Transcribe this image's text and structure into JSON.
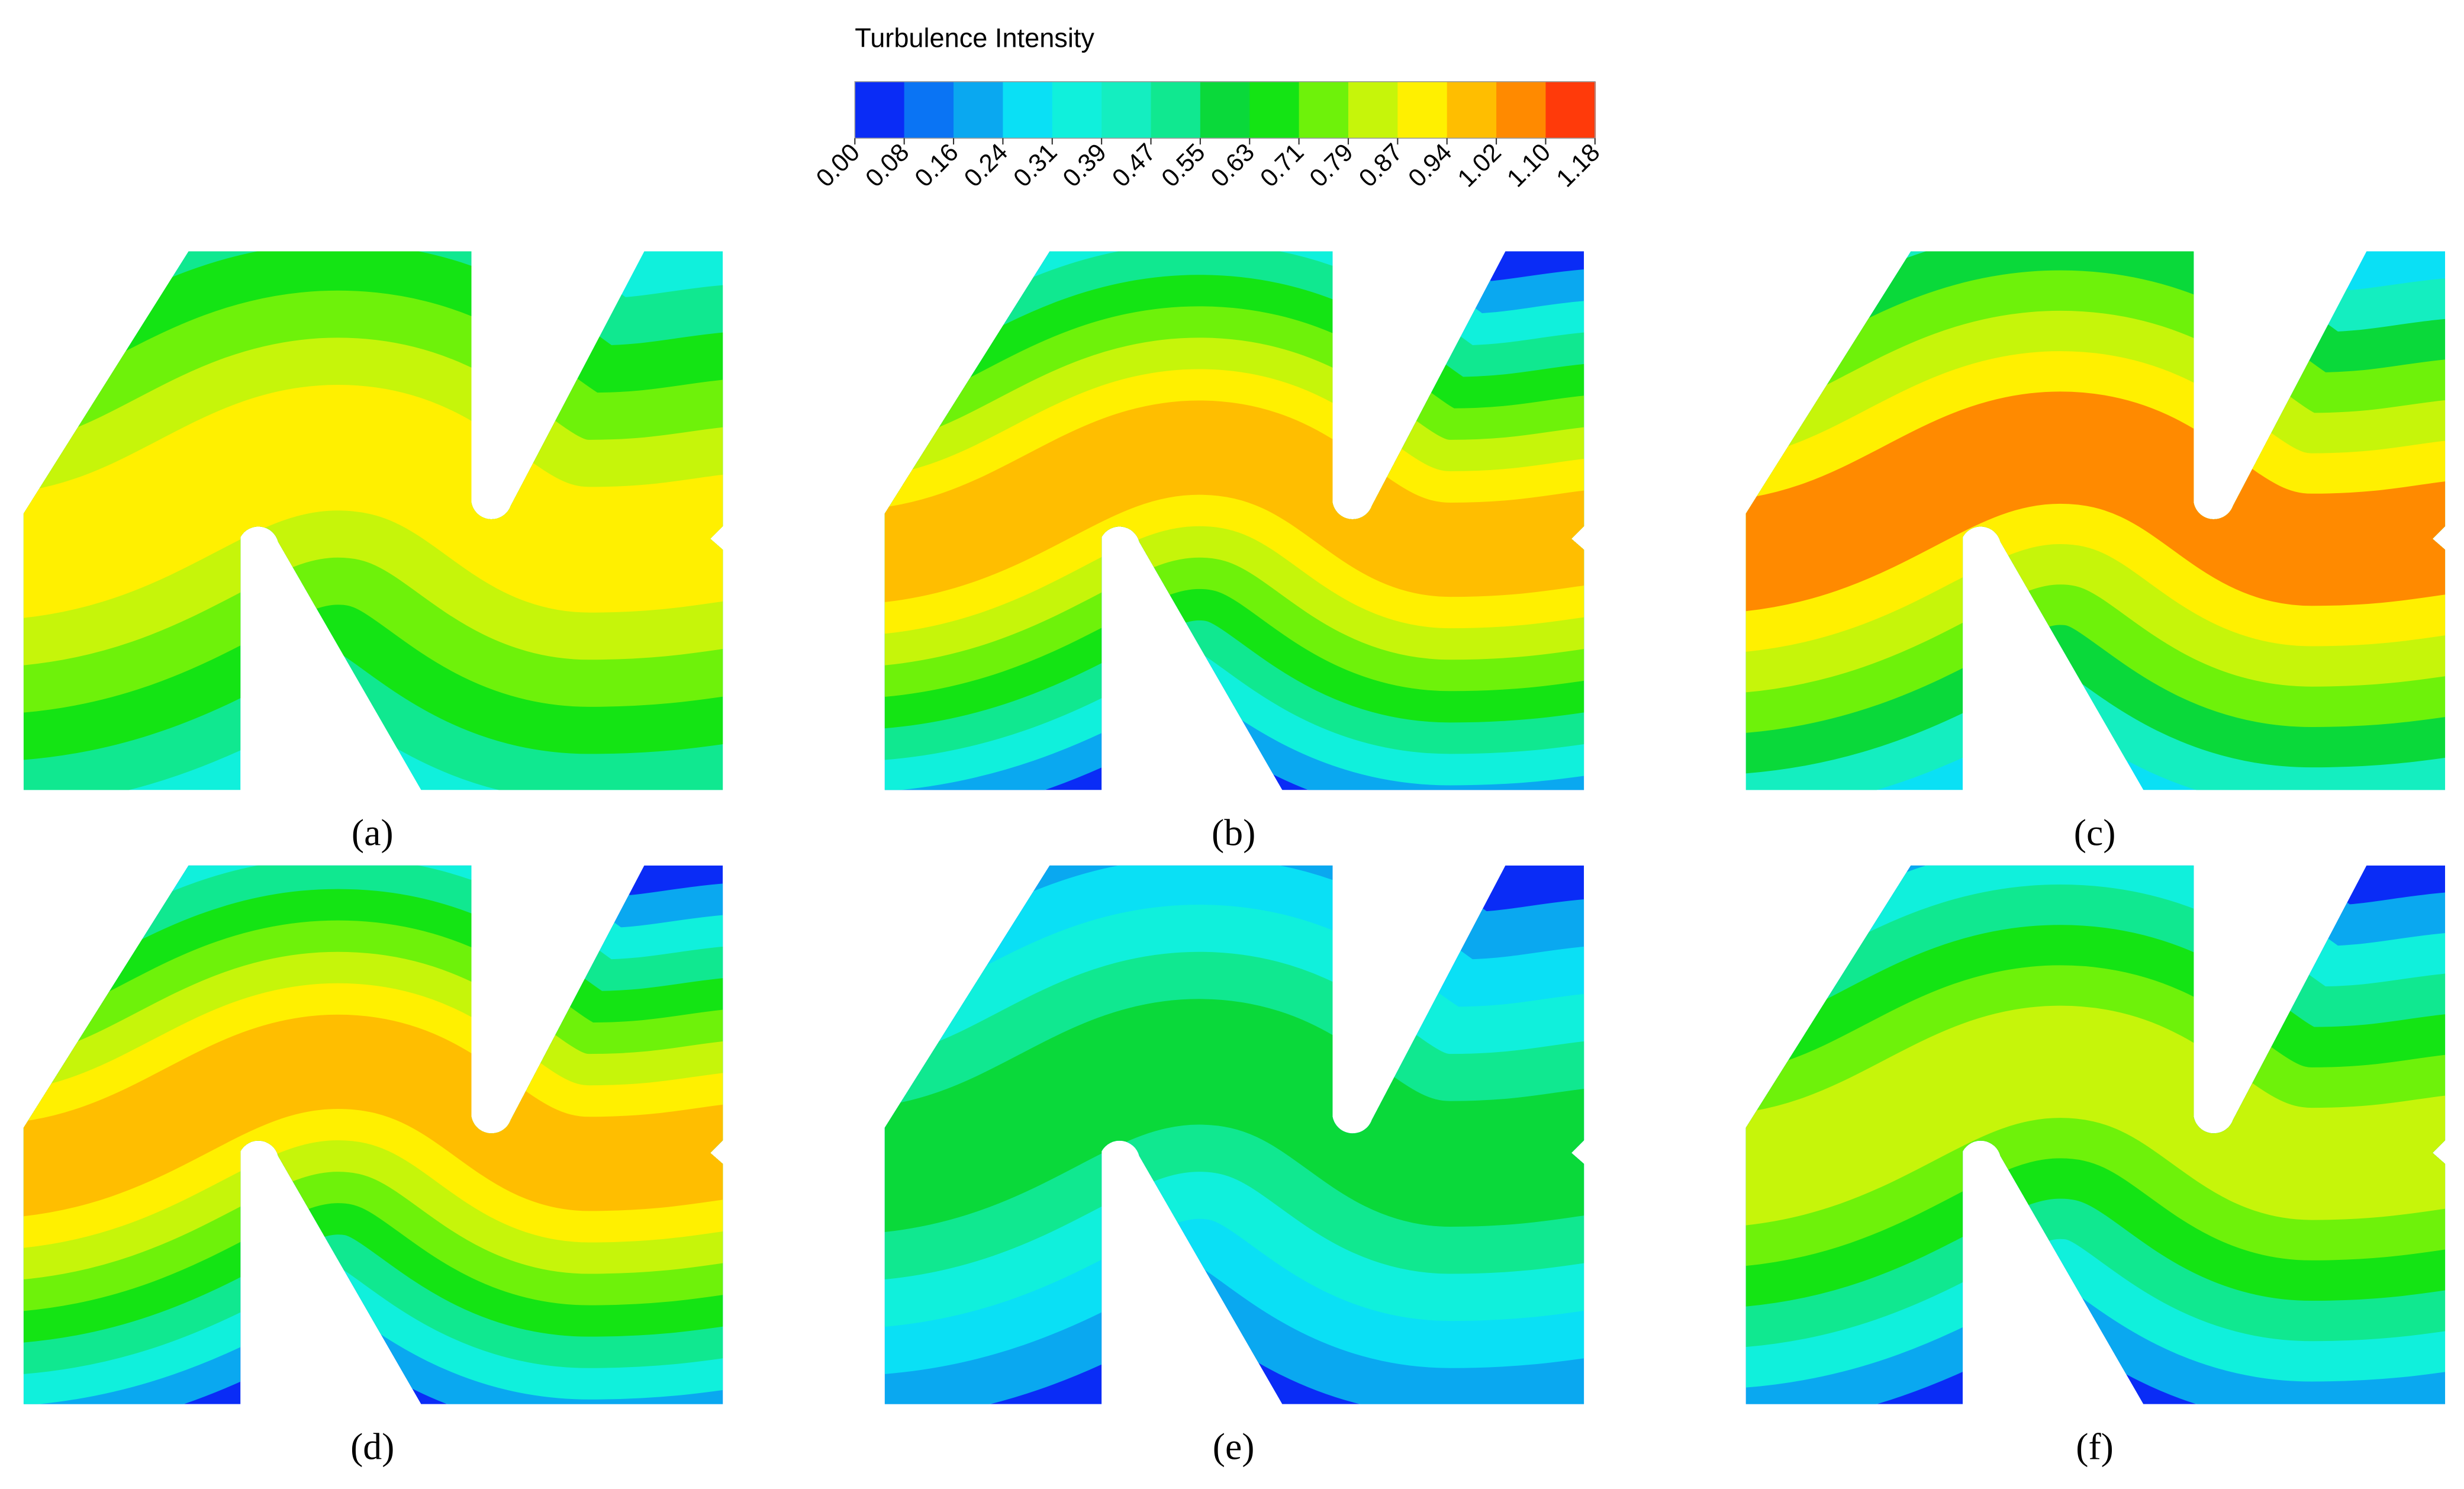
{
  "colorbar": {
    "title": "Turbulence Intensity",
    "ticks": [
      "0.00",
      "0.08",
      "0.16",
      "0.24",
      "0.31",
      "0.39",
      "0.47",
      "0.55",
      "0.63",
      "0.71",
      "0.79",
      "0.87",
      "0.94",
      "1.02",
      "1.10",
      "1.18"
    ],
    "colors": [
      "#0a2cf6",
      "#0a74f4",
      "#0aa8f0",
      "#0ae0f5",
      "#10f0dc",
      "#14eec0",
      "#10e890",
      "#0ad93a",
      "#14e414",
      "#6ef20a",
      "#c6f50a",
      "#fff000",
      "#ffbe00",
      "#ff8a00",
      "#ff3a0a"
    ]
  },
  "panels": [
    {
      "label": "(a)"
    },
    {
      "label": "(b)"
    },
    {
      "label": "(c)"
    },
    {
      "label": "(d)"
    },
    {
      "label": "(e)"
    },
    {
      "label": "(f)"
    }
  ]
}
